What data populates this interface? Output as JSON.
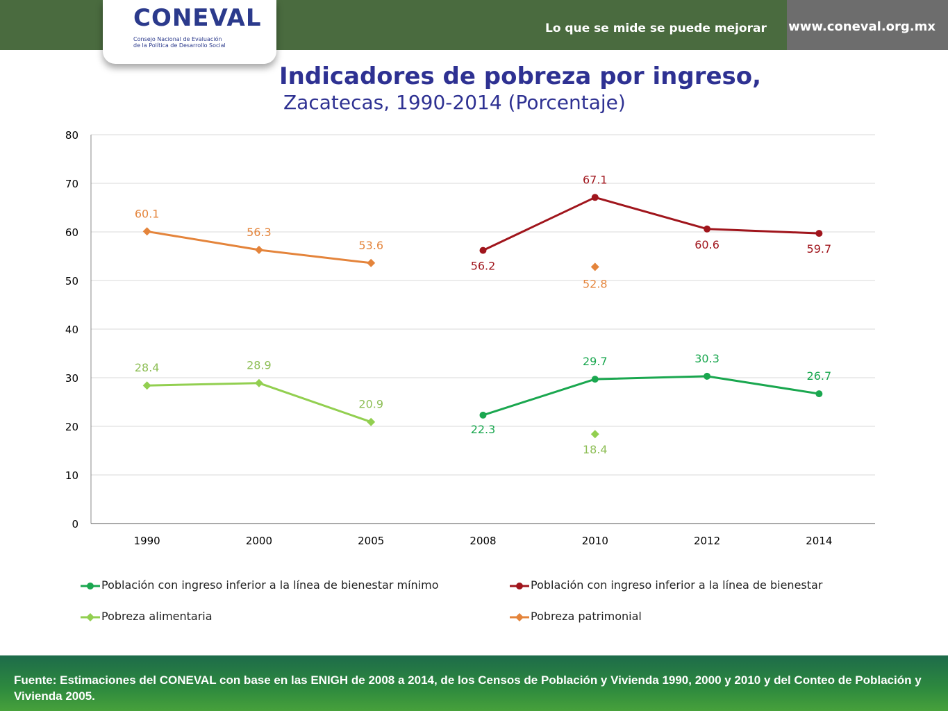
{
  "header": {
    "tagline": "Lo que se mide se puede mejorar",
    "url": "www.coneval.org.mx",
    "logo_text": "CONEVAL",
    "logo_subtitle_1": "Consejo Nacional de Evaluación",
    "logo_subtitle_2": "de la Política de Desarrollo Social"
  },
  "title": "Indicadores de pobreza por ingreso,",
  "subtitle": "Zacatecas, 1990-2014 (Porcentaje)",
  "chart_data": {
    "type": "line",
    "categories": [
      "1990",
      "2000",
      "2005",
      "2008",
      "2010",
      "2012",
      "2014"
    ],
    "ylim": [
      0,
      80
    ],
    "yticks": [
      0,
      10,
      20,
      30,
      40,
      50,
      60,
      70,
      80
    ],
    "grid": true,
    "legend_position": "bottom",
    "series": [
      {
        "name": "Población con ingreso inferior a la línea de bienestar mínimo",
        "color": "#1aa74f",
        "marker": "circle",
        "values": [
          null,
          null,
          null,
          22.3,
          29.7,
          30.3,
          26.7
        ],
        "labels": [
          "",
          "",
          "",
          "22.3",
          "29.7",
          "30.3",
          "26.7"
        ]
      },
      {
        "name": "Población con ingreso inferior a la línea de bienestar",
        "color": "#a0151c",
        "marker": "circle",
        "values": [
          null,
          null,
          null,
          56.2,
          67.1,
          60.6,
          59.7
        ],
        "labels": [
          "",
          "",
          "",
          "56.2",
          "67.1",
          "60.6",
          "59.7"
        ]
      },
      {
        "name": "Pobreza alimentaria",
        "color": "#92cf50",
        "label_color": "#8dbe55",
        "marker": "diamond",
        "values": [
          28.4,
          28.9,
          20.9,
          null,
          18.4,
          null,
          null
        ],
        "labels": [
          "28.4",
          "28.9",
          "20.9",
          "",
          "18.4",
          "",
          ""
        ],
        "connected_up_to": 2
      },
      {
        "name": "Pobreza patrimonial",
        "color": "#e4843b",
        "marker": "diamond",
        "values": [
          60.1,
          56.3,
          53.6,
          null,
          52.8,
          null,
          null
        ],
        "labels": [
          "60.1",
          "56.3",
          "53.6",
          "",
          "52.8",
          "",
          ""
        ],
        "connected_up_to": 2
      }
    ]
  },
  "footer": {
    "source": "Fuente: Estimaciones del CONEVAL con base en las ENIGH de 2008 a 2014, de los Censos de Población y Vivienda 1990, 2000 y 2010 y del Conteo de Población y Vivienda 2005."
  }
}
